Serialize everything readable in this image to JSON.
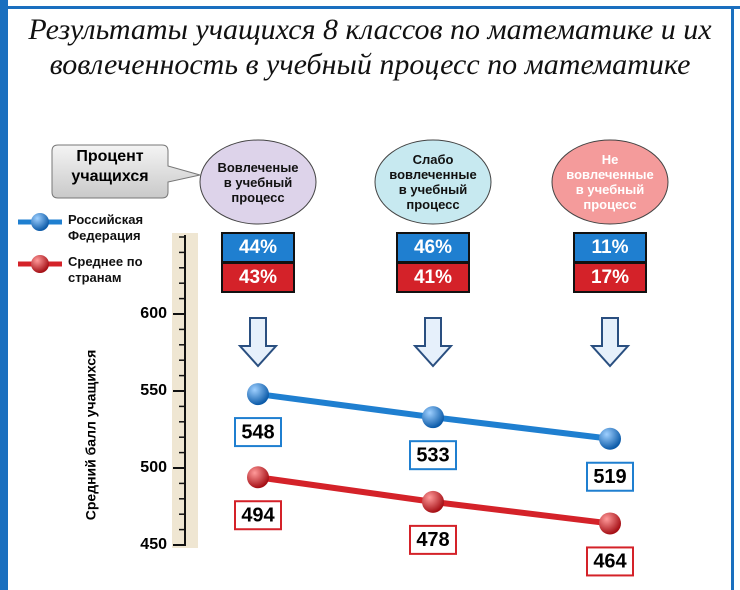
{
  "chart_data": {
    "type": "line",
    "title": "Результаты учащихся 8 классов по математике и их вовлеченность в учебный процесс по математике",
    "share_title": "Процент учащихся",
    "categories": [
      "Вовлеченые в учебный процесс",
      "Слабо вовлеченные в учебный процесс",
      "Не вовлеченные в учебный процесс"
    ],
    "y_label": "Средний балл учащихся",
    "ylim": [
      450,
      650
    ],
    "yticks": [
      450,
      500,
      550,
      600
    ],
    "minor_yticks": [
      460,
      470,
      480,
      490,
      510,
      520,
      530,
      540,
      560,
      570,
      580,
      590,
      610,
      620,
      630,
      640,
      650
    ],
    "series": [
      {
        "name": "Российская Федерация",
        "color": "#1f7fd0",
        "values": [
          548,
          533,
          519
        ],
        "shares": [
          44,
          46,
          11
        ],
        "share_labels": [
          "44%",
          "46%",
          "11%"
        ]
      },
      {
        "name": "Среднее по странам",
        "color": "#d42229",
        "values": [
          494,
          478,
          464
        ],
        "shares": [
          43,
          41,
          17
        ],
        "share_labels": [
          "43%",
          "41%",
          "17%"
        ]
      }
    ]
  }
}
